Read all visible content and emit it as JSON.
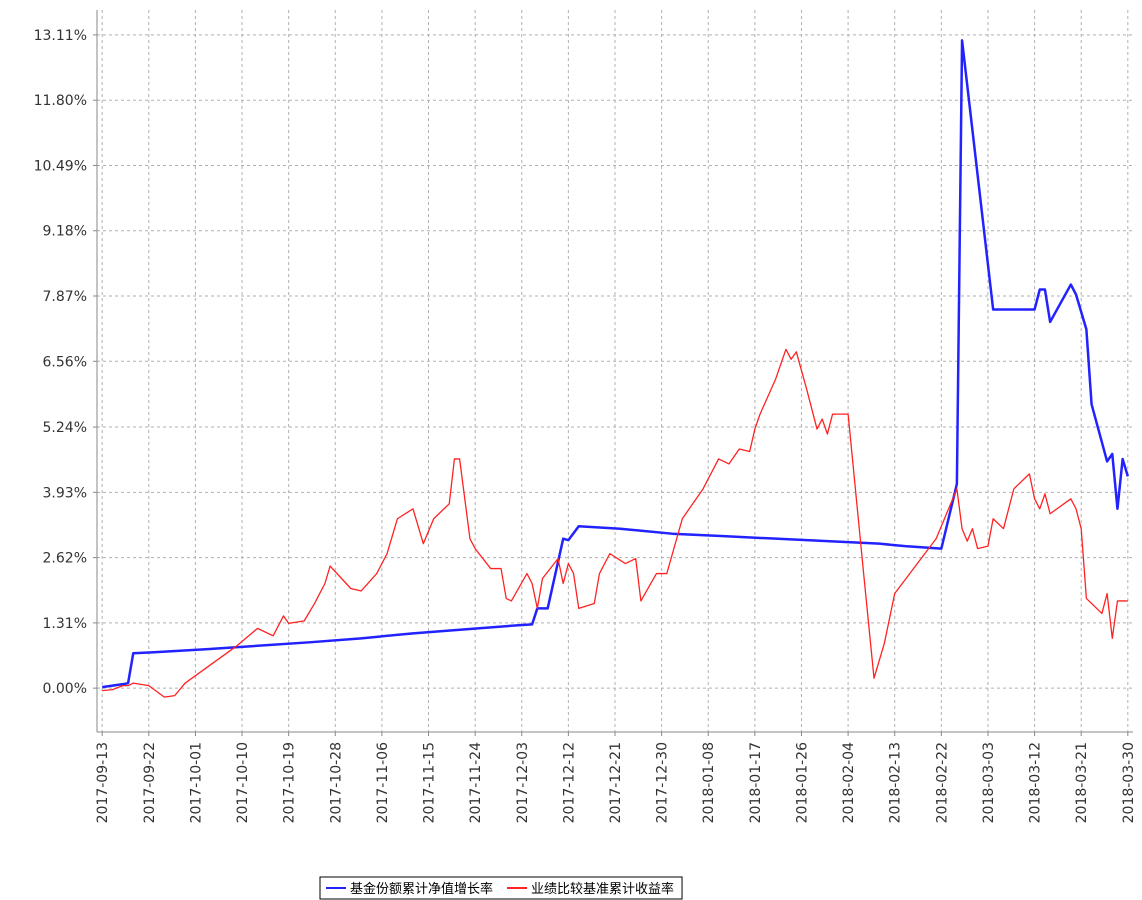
{
  "chart_data": {
    "type": "line",
    "xlim": [
      "2017-09-12",
      "2018-03-31"
    ],
    "xticks": [
      "2017-09-13",
      "2017-09-22",
      "2017-10-01",
      "2017-10-10",
      "2017-10-19",
      "2017-10-28",
      "2017-11-06",
      "2017-11-15",
      "2017-11-24",
      "2017-12-03",
      "2017-12-12",
      "2017-12-21",
      "2017-12-30",
      "2018-01-08",
      "2018-01-17",
      "2018-01-26",
      "2018-02-04",
      "2018-02-13",
      "2018-02-22",
      "2018-03-03",
      "2018-03-12",
      "2018-03-21",
      "2018-03-30"
    ],
    "ylim": [
      -0.88,
      13.61
    ],
    "yticks": [
      {
        "value": 0,
        "label": "0.00%"
      },
      {
        "value": 1.31,
        "label": "1.31%"
      },
      {
        "value": 2.62,
        "label": "2.62%"
      },
      {
        "value": 3.93,
        "label": "3.93%"
      },
      {
        "value": 5.24,
        "label": "5.24%"
      },
      {
        "value": 6.56,
        "label": "6.56%"
      },
      {
        "value": 7.87,
        "label": "7.87%"
      },
      {
        "value": 9.18,
        "label": "9.18%"
      },
      {
        "value": 10.49,
        "label": "10.49%"
      },
      {
        "value": 11.8,
        "label": "11.80%"
      },
      {
        "value": 13.11,
        "label": "13.11%"
      }
    ],
    "grid": true,
    "legend": "bottom",
    "series": [
      {
        "name": "基金份额累计净值增长率",
        "color": "#2222ff",
        "x": [
          "2017-09-13",
          "2017-09-17",
          "2017-09-18",
          "2017-09-19",
          "2017-09-23",
          "2017-10-03",
          "2017-10-13",
          "2017-10-23",
          "2017-11-02",
          "2017-11-12",
          "2017-11-22",
          "2017-12-02",
          "2017-12-05",
          "2017-12-06",
          "2017-12-08",
          "2017-12-11",
          "2017-12-12",
          "2017-12-14",
          "2017-12-22",
          "2018-01-01",
          "2018-01-11",
          "2018-01-21",
          "2018-01-31",
          "2018-02-10",
          "2018-02-15",
          "2018-02-22",
          "2018-02-25",
          "2018-02-26",
          "2018-03-04",
          "2018-03-12",
          "2018-03-13",
          "2018-03-14",
          "2018-03-15",
          "2018-03-19",
          "2018-03-20",
          "2018-03-22",
          "2018-03-23",
          "2018-03-26",
          "2018-03-27",
          "2018-03-28",
          "2018-03-29",
          "2018-03-30"
        ],
        "values": [
          0.02,
          0.08,
          0.1,
          0.7,
          0.72,
          0.78,
          0.85,
          0.92,
          1.0,
          1.1,
          1.18,
          1.26,
          1.28,
          1.6,
          1.6,
          3.0,
          2.97,
          3.25,
          3.2,
          3.1,
          3.05,
          3.0,
          2.95,
          2.9,
          2.85,
          2.8,
          4.1,
          13.0,
          7.6,
          7.6,
          8.0,
          8.0,
          7.35,
          8.1,
          7.9,
          7.2,
          5.7,
          4.55,
          4.7,
          3.6,
          4.6,
          4.25
        ]
      },
      {
        "name": "业绩比较基准累计收益率",
        "color": "#ff2222",
        "x": [
          "2017-09-13",
          "2017-09-15",
          "2017-09-17",
          "2017-09-18",
          "2017-09-19",
          "2017-09-22",
          "2017-09-25",
          "2017-09-27",
          "2017-09-29",
          "2017-10-09",
          "2017-10-13",
          "2017-10-16",
          "2017-10-18",
          "2017-10-19",
          "2017-10-22",
          "2017-10-24",
          "2017-10-26",
          "2017-10-27",
          "2017-10-31",
          "2017-11-02",
          "2017-11-05",
          "2017-11-07",
          "2017-11-09",
          "2017-11-12",
          "2017-11-14",
          "2017-11-16",
          "2017-11-19",
          "2017-11-20",
          "2017-11-21",
          "2017-11-23",
          "2017-11-24",
          "2017-11-27",
          "2017-11-29",
          "2017-11-30",
          "2017-12-01",
          "2017-12-04",
          "2017-12-05",
          "2017-12-06",
          "2017-12-07",
          "2017-12-10",
          "2017-12-11",
          "2017-12-12",
          "2017-12-13",
          "2017-12-14",
          "2017-12-17",
          "2017-12-18",
          "2017-12-20",
          "2017-12-23",
          "2017-12-25",
          "2017-12-26",
          "2017-12-29",
          "2017-12-31",
          "2018-01-03",
          "2018-01-07",
          "2018-01-10",
          "2018-01-12",
          "2018-01-14",
          "2018-01-16",
          "2018-01-17",
          "2018-01-18",
          "2018-01-21",
          "2018-01-23",
          "2018-01-24",
          "2018-01-25",
          "2018-01-27",
          "2018-01-29",
          "2018-01-30",
          "2018-01-31",
          "2018-02-01",
          "2018-02-04",
          "2018-02-07",
          "2018-02-09",
          "2018-02-11",
          "2018-02-13",
          "2018-02-21",
          "2018-02-25",
          "2018-02-26",
          "2018-02-27",
          "2018-02-28",
          "2018-03-01",
          "2018-03-03",
          "2018-03-04",
          "2018-03-06",
          "2018-03-08",
          "2018-03-11",
          "2018-03-12",
          "2018-03-13",
          "2018-03-14",
          "2018-03-15",
          "2018-03-19",
          "2018-03-20",
          "2018-03-21",
          "2018-03-22",
          "2018-03-25",
          "2018-03-26",
          "2018-03-27",
          "2018-03-28",
          "2018-03-30"
        ],
        "values": [
          -0.05,
          -0.03,
          0.05,
          0.05,
          0.1,
          0.05,
          -0.18,
          -0.15,
          0.1,
          0.85,
          1.2,
          1.05,
          1.45,
          1.3,
          1.35,
          1.7,
          2.1,
          2.45,
          2.0,
          1.95,
          2.3,
          2.7,
          3.4,
          3.6,
          2.9,
          3.4,
          3.7,
          4.6,
          4.6,
          3.0,
          2.8,
          2.4,
          2.4,
          1.8,
          1.75,
          2.3,
          2.1,
          1.6,
          2.2,
          2.6,
          2.1,
          2.5,
          2.3,
          1.6,
          1.7,
          2.3,
          2.7,
          2.5,
          2.6,
          1.75,
          2.3,
          2.3,
          3.4,
          4.0,
          4.6,
          4.5,
          4.8,
          4.75,
          5.2,
          5.5,
          6.2,
          6.8,
          6.6,
          6.75,
          6.0,
          5.2,
          5.4,
          5.1,
          5.5,
          5.5,
          2.3,
          0.2,
          0.9,
          1.9,
          3.0,
          4.0,
          3.2,
          2.95,
          3.2,
          2.8,
          2.85,
          3.4,
          3.2,
          4.0,
          4.3,
          3.8,
          3.6,
          3.9,
          3.5,
          3.8,
          3.6,
          3.2,
          1.8,
          1.5,
          1.9,
          1.0,
          1.75,
          1.75
        ]
      }
    ]
  }
}
